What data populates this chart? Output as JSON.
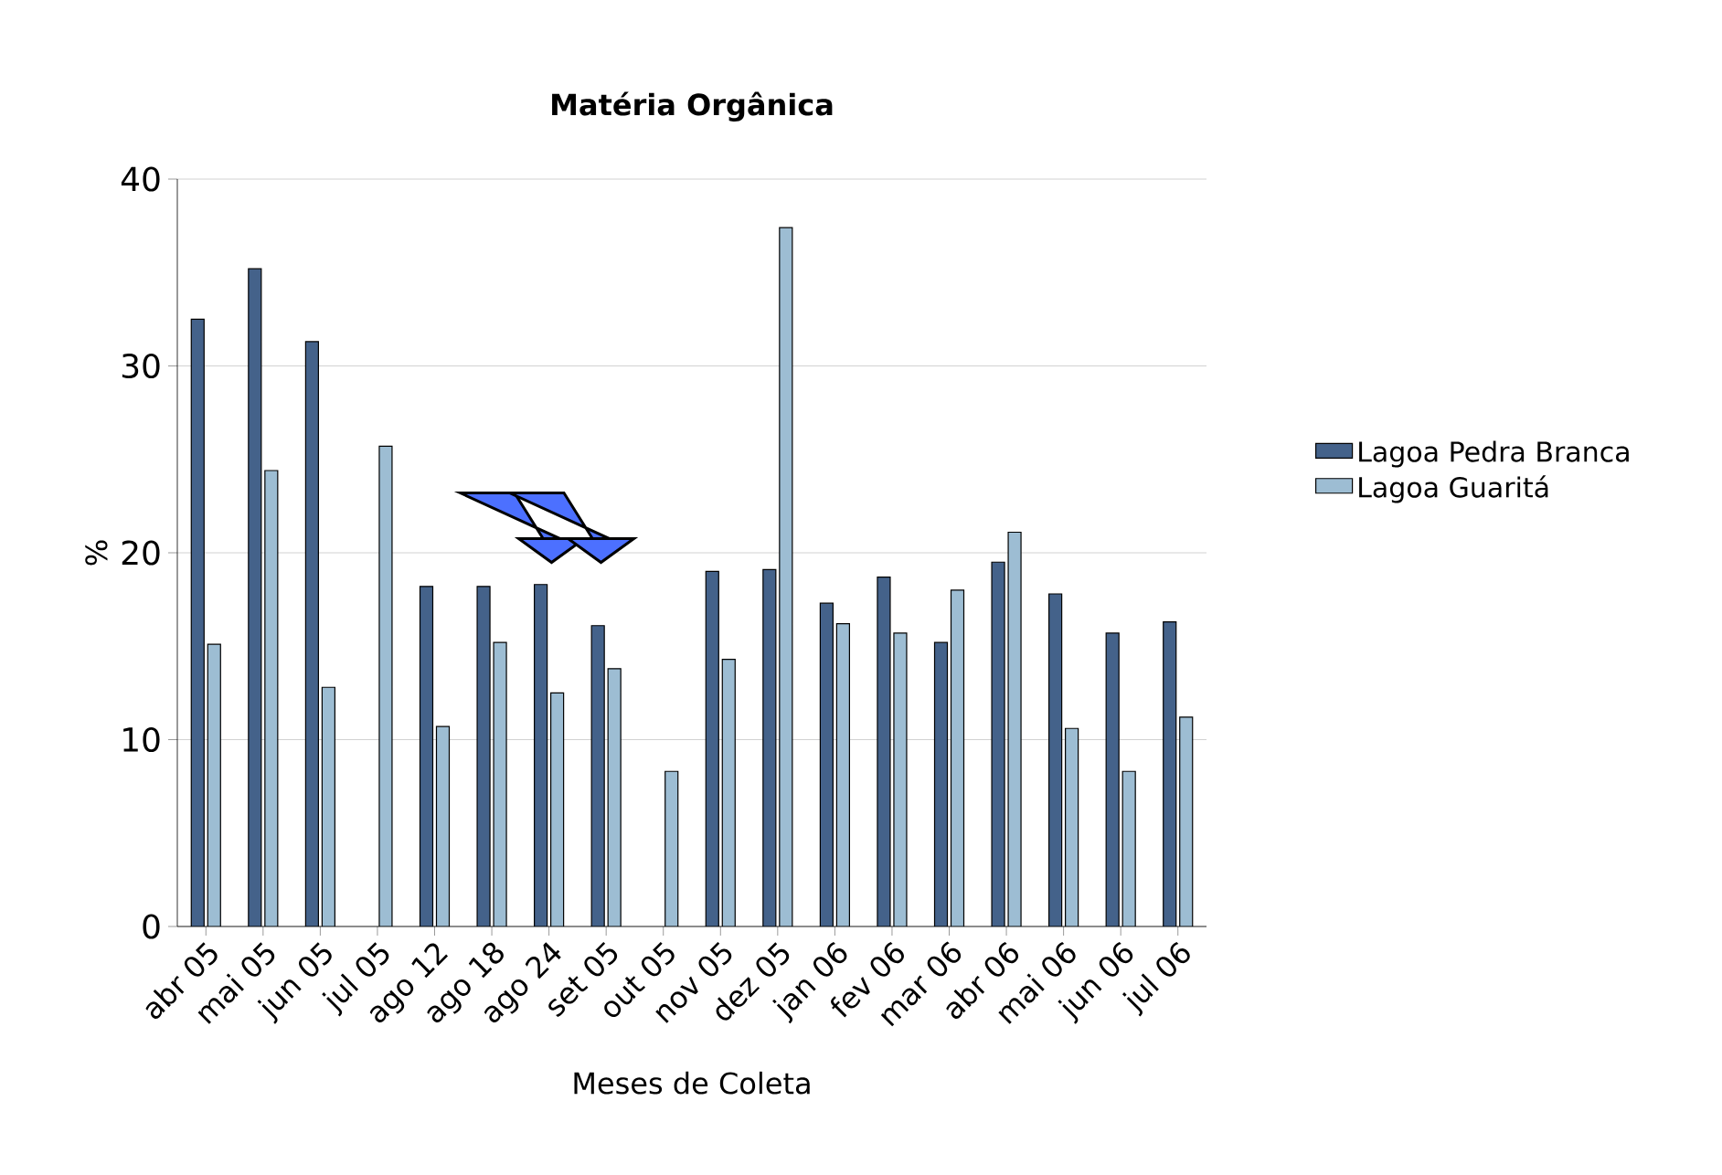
{
  "chart_data": {
    "type": "bar",
    "title": "**Matéria Orgânica**",
    "xlabel": "Meses de Coleta",
    "ylabel": "%",
    "categories": [
      "abr 05",
      "mai 05",
      "jun 05",
      "jul 05",
      "ago 12",
      "ago 18",
      "ago 24",
      "set 05",
      "out 05",
      "nov 05",
      "dez 05",
      "jan 06",
      "fev 06",
      "mar 06",
      "abr 06",
      "mai 06",
      "jun 06",
      "jul 06"
    ],
    "series": [
      {
        "name": "Lagoa Pedra Branca",
        "color": "#44628a",
        "values": [
          32.5,
          35.2,
          31.3,
          null,
          18.2,
          18.2,
          18.3,
          16.1,
          null,
          19.0,
          19.1,
          17.3,
          18.7,
          15.2,
          19.5,
          17.8,
          15.7,
          16.3
        ]
      },
      {
        "name": "Lagoa Guaritá",
        "color": "#9dbdd3",
        "values": [
          15.1,
          24.4,
          12.8,
          25.7,
          10.7,
          15.2,
          12.5,
          13.8,
          8.3,
          14.3,
          37.4,
          16.2,
          15.7,
          18.0,
          21.1,
          10.6,
          8.3,
          11.2
        ]
      }
    ],
    "ylim": [
      0,
      40
    ],
    "yticks": [
      0,
      10,
      20,
      30,
      40
    ],
    "grid": "y",
    "legend": "right"
  }
}
